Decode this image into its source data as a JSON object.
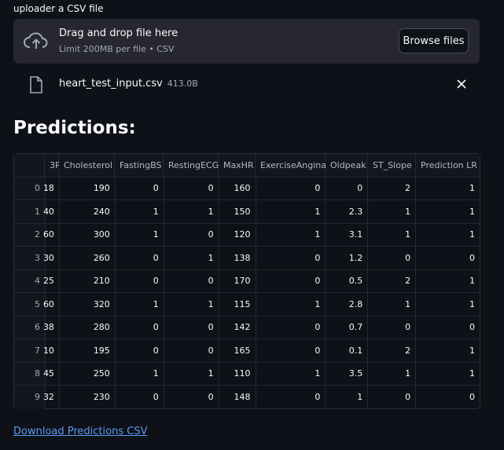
{
  "uploader": {
    "label": "uploader a CSV file",
    "title": "Drag and drop file here",
    "limit": "Limit 200MB per file • CSV",
    "button": "Browse files"
  },
  "file": {
    "name": "heart_test_input.csv",
    "size": "413.0B"
  },
  "heading": "Predictions:",
  "table": {
    "columns": [
      "3P",
      "Cholesterol",
      "FastingBS",
      "RestingECG",
      "MaxHR",
      "ExerciseAngina",
      "Oldpeak",
      "ST_Slope",
      "Prediction LR"
    ],
    "index": [
      0,
      1,
      2,
      3,
      4,
      5,
      6,
      7,
      8,
      9
    ],
    "rows": [
      [
        18,
        190,
        0,
        0,
        160,
        0,
        0,
        2,
        1
      ],
      [
        40,
        240,
        1,
        1,
        150,
        1,
        2.3,
        1,
        1
      ],
      [
        60,
        300,
        1,
        0,
        120,
        1,
        3.1,
        1,
        1
      ],
      [
        30,
        260,
        0,
        1,
        138,
        0,
        1.2,
        0,
        0
      ],
      [
        25,
        210,
        0,
        0,
        170,
        0,
        0.5,
        2,
        1
      ],
      [
        60,
        320,
        1,
        1,
        115,
        1,
        2.8,
        1,
        1
      ],
      [
        38,
        280,
        0,
        0,
        142,
        0,
        0.7,
        0,
        0
      ],
      [
        10,
        195,
        0,
        0,
        165,
        0,
        0.1,
        2,
        1
      ],
      [
        45,
        250,
        1,
        1,
        110,
        1,
        3.5,
        1,
        1
      ],
      [
        32,
        230,
        0,
        0,
        148,
        0,
        1,
        0,
        0
      ]
    ]
  },
  "link": "Download Predictions CSV"
}
